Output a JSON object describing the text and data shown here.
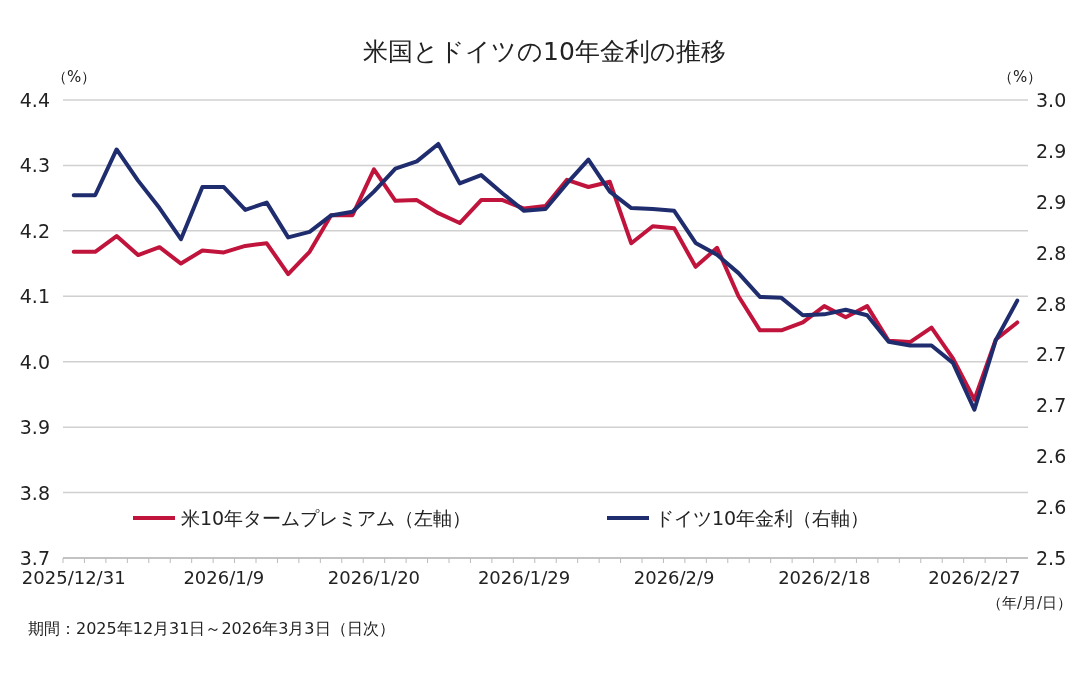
{
  "chart_data": {
    "type": "line",
    "title": "米国とドイツの10年金利の推移",
    "ylabel": "（%）",
    "y2label": "（%）",
    "xlabel": "（年/月/日）",
    "annotations": [
      "期間：2025年12月31日～2026年3月3日（日次）"
    ],
    "categories": [
      "2025/12/31",
      null,
      null,
      null,
      null,
      null,
      null,
      "2026/1/9",
      null,
      null,
      null,
      null,
      null,
      null,
      "2026/1/20",
      null,
      null,
      null,
      null,
      null,
      null,
      "2026/1/29",
      null,
      null,
      null,
      null,
      null,
      null,
      "2026/2/9",
      null,
      null,
      null,
      null,
      null,
      null,
      "2026/2/18",
      null,
      null,
      null,
      null,
      null,
      null,
      "2026/2/27",
      null,
      null
    ],
    "series": [
      {
        "name": "米10年タームプレミアム（左軸）",
        "color": "#c0143c",
        "values": [
          4.168,
          4.168,
          4.192,
          4.163,
          4.175,
          4.15,
          4.17,
          4.167,
          4.177,
          4.181,
          4.134,
          4.168,
          4.224,
          4.224,
          4.294,
          4.246,
          4.247,
          4.227,
          4.212,
          4.247,
          4.247,
          4.234,
          4.238,
          4.278,
          4.267,
          4.275,
          4.181,
          4.207,
          4.204,
          4.145,
          4.174,
          4.1,
          4.048,
          4.048,
          4.06,
          4.085,
          4.068,
          4.085,
          4.032,
          4.03,
          4.052,
          4.005,
          3.942,
          4.034,
          4.06
        ]
      },
      {
        "name": "ドイツ10年金利（右軸）",
        "color": "#1f2d6e",
        "axis": "y2",
        "values": [
          2.896,
          2.896,
          2.946,
          2.912,
          2.882,
          2.848,
          2.905,
          2.905,
          2.88,
          2.888,
          2.85,
          2.856,
          2.874,
          2.878,
          2.9,
          2.925,
          2.933,
          2.952,
          2.909,
          2.918,
          2.898,
          2.879,
          2.881,
          2.909,
          2.935,
          2.9,
          2.882,
          2.881,
          2.879,
          2.844,
          2.831,
          2.811,
          2.785,
          2.784,
          2.765,
          2.766,
          2.771,
          2.765,
          2.736,
          2.732,
          2.732,
          2.713,
          2.662,
          2.738,
          2.781
        ]
      }
    ],
    "ylim": [
      3.7,
      4.4
    ],
    "yticks": [
      {
        "value": 3.7,
        "label": "3.7"
      },
      {
        "value": 3.8,
        "label": "3.8"
      },
      {
        "value": 3.9,
        "label": "3.9"
      },
      {
        "value": 4.0,
        "label": "4.0"
      },
      {
        "value": 4.1,
        "label": "4.1"
      },
      {
        "value": 4.2,
        "label": "4.2"
      },
      {
        "value": 4.3,
        "label": "4.3"
      },
      {
        "value": 4.4,
        "label": "4.4"
      }
    ],
    "y2lim": [
      2.5,
      3.0
    ],
    "y2ticks": [
      {
        "value": 2.5,
        "label": "2.5"
      },
      {
        "value": 2.5556,
        "label": "2.6"
      },
      {
        "value": 2.6111,
        "label": "2.6"
      },
      {
        "value": 2.6667,
        "label": "2.7"
      },
      {
        "value": 2.7222,
        "label": "2.7"
      },
      {
        "value": 2.7778,
        "label": "2.8"
      },
      {
        "value": 2.8333,
        "label": "2.8"
      },
      {
        "value": 2.8889,
        "label": "2.9"
      },
      {
        "value": 2.9444,
        "label": "2.9"
      },
      {
        "value": 3.0,
        "label": "3.0"
      }
    ],
    "grid": "y",
    "legend": "bottom"
  }
}
